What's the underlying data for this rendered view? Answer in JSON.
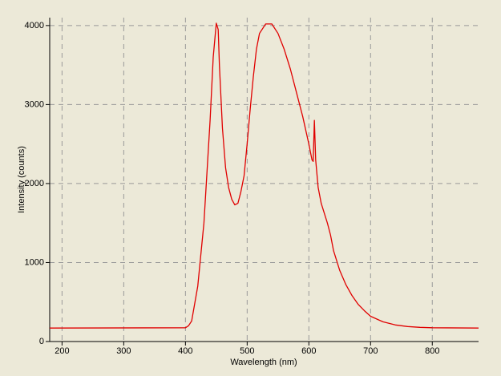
{
  "chart_data": {
    "type": "line",
    "x_label": "Wavelength (nm)",
    "y_label": "Intensity (counts)",
    "color": "#e00000",
    "x": [
      180,
      400,
      405,
      410,
      420,
      430,
      440,
      445,
      450,
      453,
      455,
      460,
      465,
      470,
      475,
      480,
      485,
      490,
      495,
      500,
      505,
      510,
      515,
      520,
      530,
      540,
      550,
      560,
      570,
      580,
      590,
      600,
      605,
      607,
      609,
      611,
      615,
      620,
      630,
      635,
      640,
      650,
      660,
      670,
      680,
      690,
      700,
      720,
      740,
      760,
      780,
      800,
      875
    ],
    "values": [
      170,
      175,
      200,
      260,
      700,
      1500,
      2800,
      3600,
      4030,
      3950,
      3500,
      2700,
      2200,
      1950,
      1800,
      1730,
      1750,
      1900,
      2100,
      2500,
      2950,
      3350,
      3700,
      3900,
      4020,
      4020,
      3900,
      3700,
      3450,
      3150,
      2850,
      2500,
      2300,
      2280,
      2800,
      2300,
      1950,
      1750,
      1500,
      1350,
      1150,
      900,
      720,
      580,
      470,
      390,
      320,
      250,
      210,
      190,
      180,
      175,
      170
    ],
    "xlim": [
      180,
      875
    ],
    "ylim": [
      0,
      4100
    ],
    "xticks": [
      200,
      300,
      400,
      500,
      600,
      700,
      800
    ],
    "yticks": [
      0,
      1000,
      2000,
      3000,
      4000
    ],
    "grid": true
  }
}
